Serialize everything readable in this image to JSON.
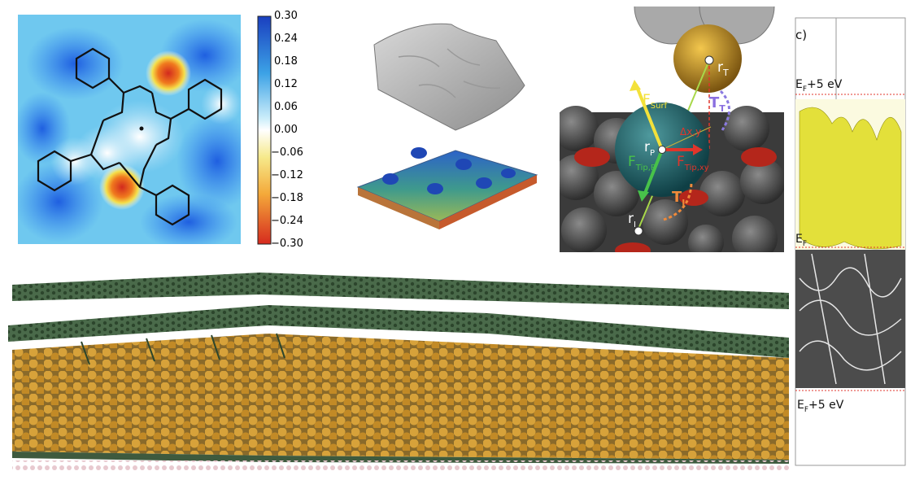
{
  "colorbar": {
    "ticks": [
      "0.30",
      "0.24",
      "0.18",
      "0.12",
      "0.06",
      "0.00",
      "−0.06",
      "−0.12",
      "−0.18",
      "−0.24",
      "−0.30"
    ]
  },
  "tip_model": {
    "r_T": {
      "main": "r",
      "sub": "T"
    },
    "T_T": {
      "main": "T",
      "sub": "T"
    },
    "F_surf": {
      "main": "F",
      "sub": "Surf"
    },
    "delta_xy": "Δx,y",
    "r_P": {
      "main": "r",
      "sub": "P"
    },
    "F_tip_R": {
      "main": "F",
      "sub": "Tip,R"
    },
    "F_tip_xy": {
      "main": "F",
      "sub": "Tip,xy"
    },
    "T_I": {
      "main": "T",
      "sub": "I"
    },
    "r_I": {
      "main": "r",
      "sub": "I"
    }
  },
  "band_panel": {
    "panel_label": "c)",
    "top_level": {
      "main": "E",
      "sub": "F",
      "rest": "+5 eV"
    },
    "mid_level": {
      "main": "E",
      "sub": "F",
      "rest": ""
    },
    "bottom_level": {
      "main": "E",
      "sub": "F",
      "rest": "+5 eV"
    }
  },
  "colors": {
    "red": "#e0352b",
    "white": "#ffffff",
    "light_blue": "#6cc6ee",
    "blue": "#1a4fd8",
    "graphene": "#3e5a3e",
    "gold_atom": "#c5902c",
    "dashed_red": "#e0352b",
    "isosurface": "#e3e03a"
  }
}
